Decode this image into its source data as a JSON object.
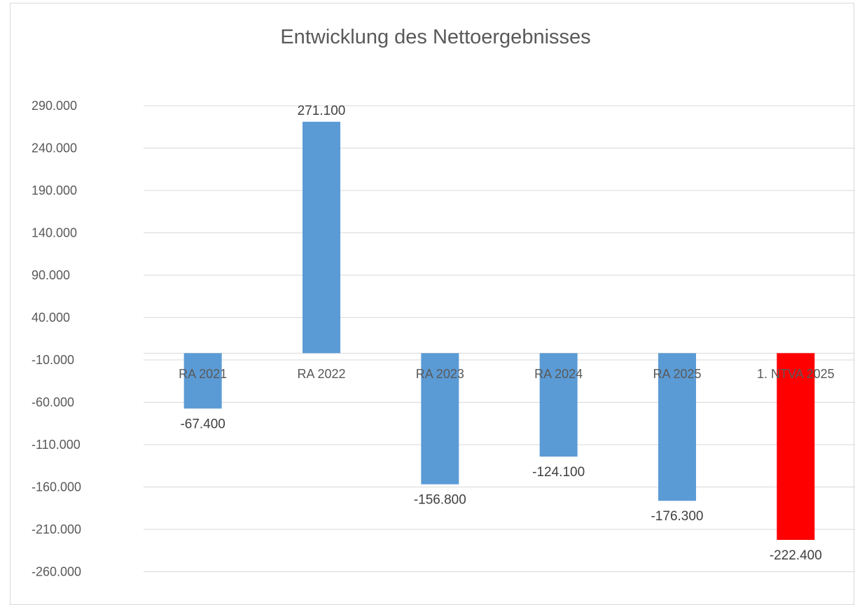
{
  "chart_data": {
    "type": "bar",
    "title": "Entwicklung des Nettoergebnisses",
    "categories": [
      "RA 2021",
      "RA 2022",
      "RA 2023",
      "RA 2024",
      "RA 2025",
      "1. NTVA 2025"
    ],
    "series": [
      {
        "values": [
          -67400,
          271100,
          -156800,
          -124100,
          -176300,
          -222400
        ],
        "data_labels": [
          "-67.400",
          "271.100",
          "-156.800",
          "-124.100",
          "-176.300",
          "-222.400"
        ]
      }
    ],
    "bar_colors": [
      "#5b9bd5",
      "#5b9bd5",
      "#5b9bd5",
      "#5b9bd5",
      "#5b9bd5",
      "#ff0000"
    ],
    "y_ticks": [
      290000,
      240000,
      190000,
      140000,
      90000,
      40000,
      -10000,
      -60000,
      -110000,
      -160000,
      -210000,
      -260000
    ],
    "y_tick_labels": [
      "290.000",
      "240.000",
      "190.000",
      "140.000",
      "90.000",
      "40.000",
      "-10.000",
      "-60.000",
      "-110.000",
      "-160.000",
      "-210.000",
      "-260.000"
    ],
    "ylim": [
      -280000,
      290000
    ],
    "grid": true,
    "legend": "none",
    "xlabel": "",
    "ylabel": ""
  }
}
